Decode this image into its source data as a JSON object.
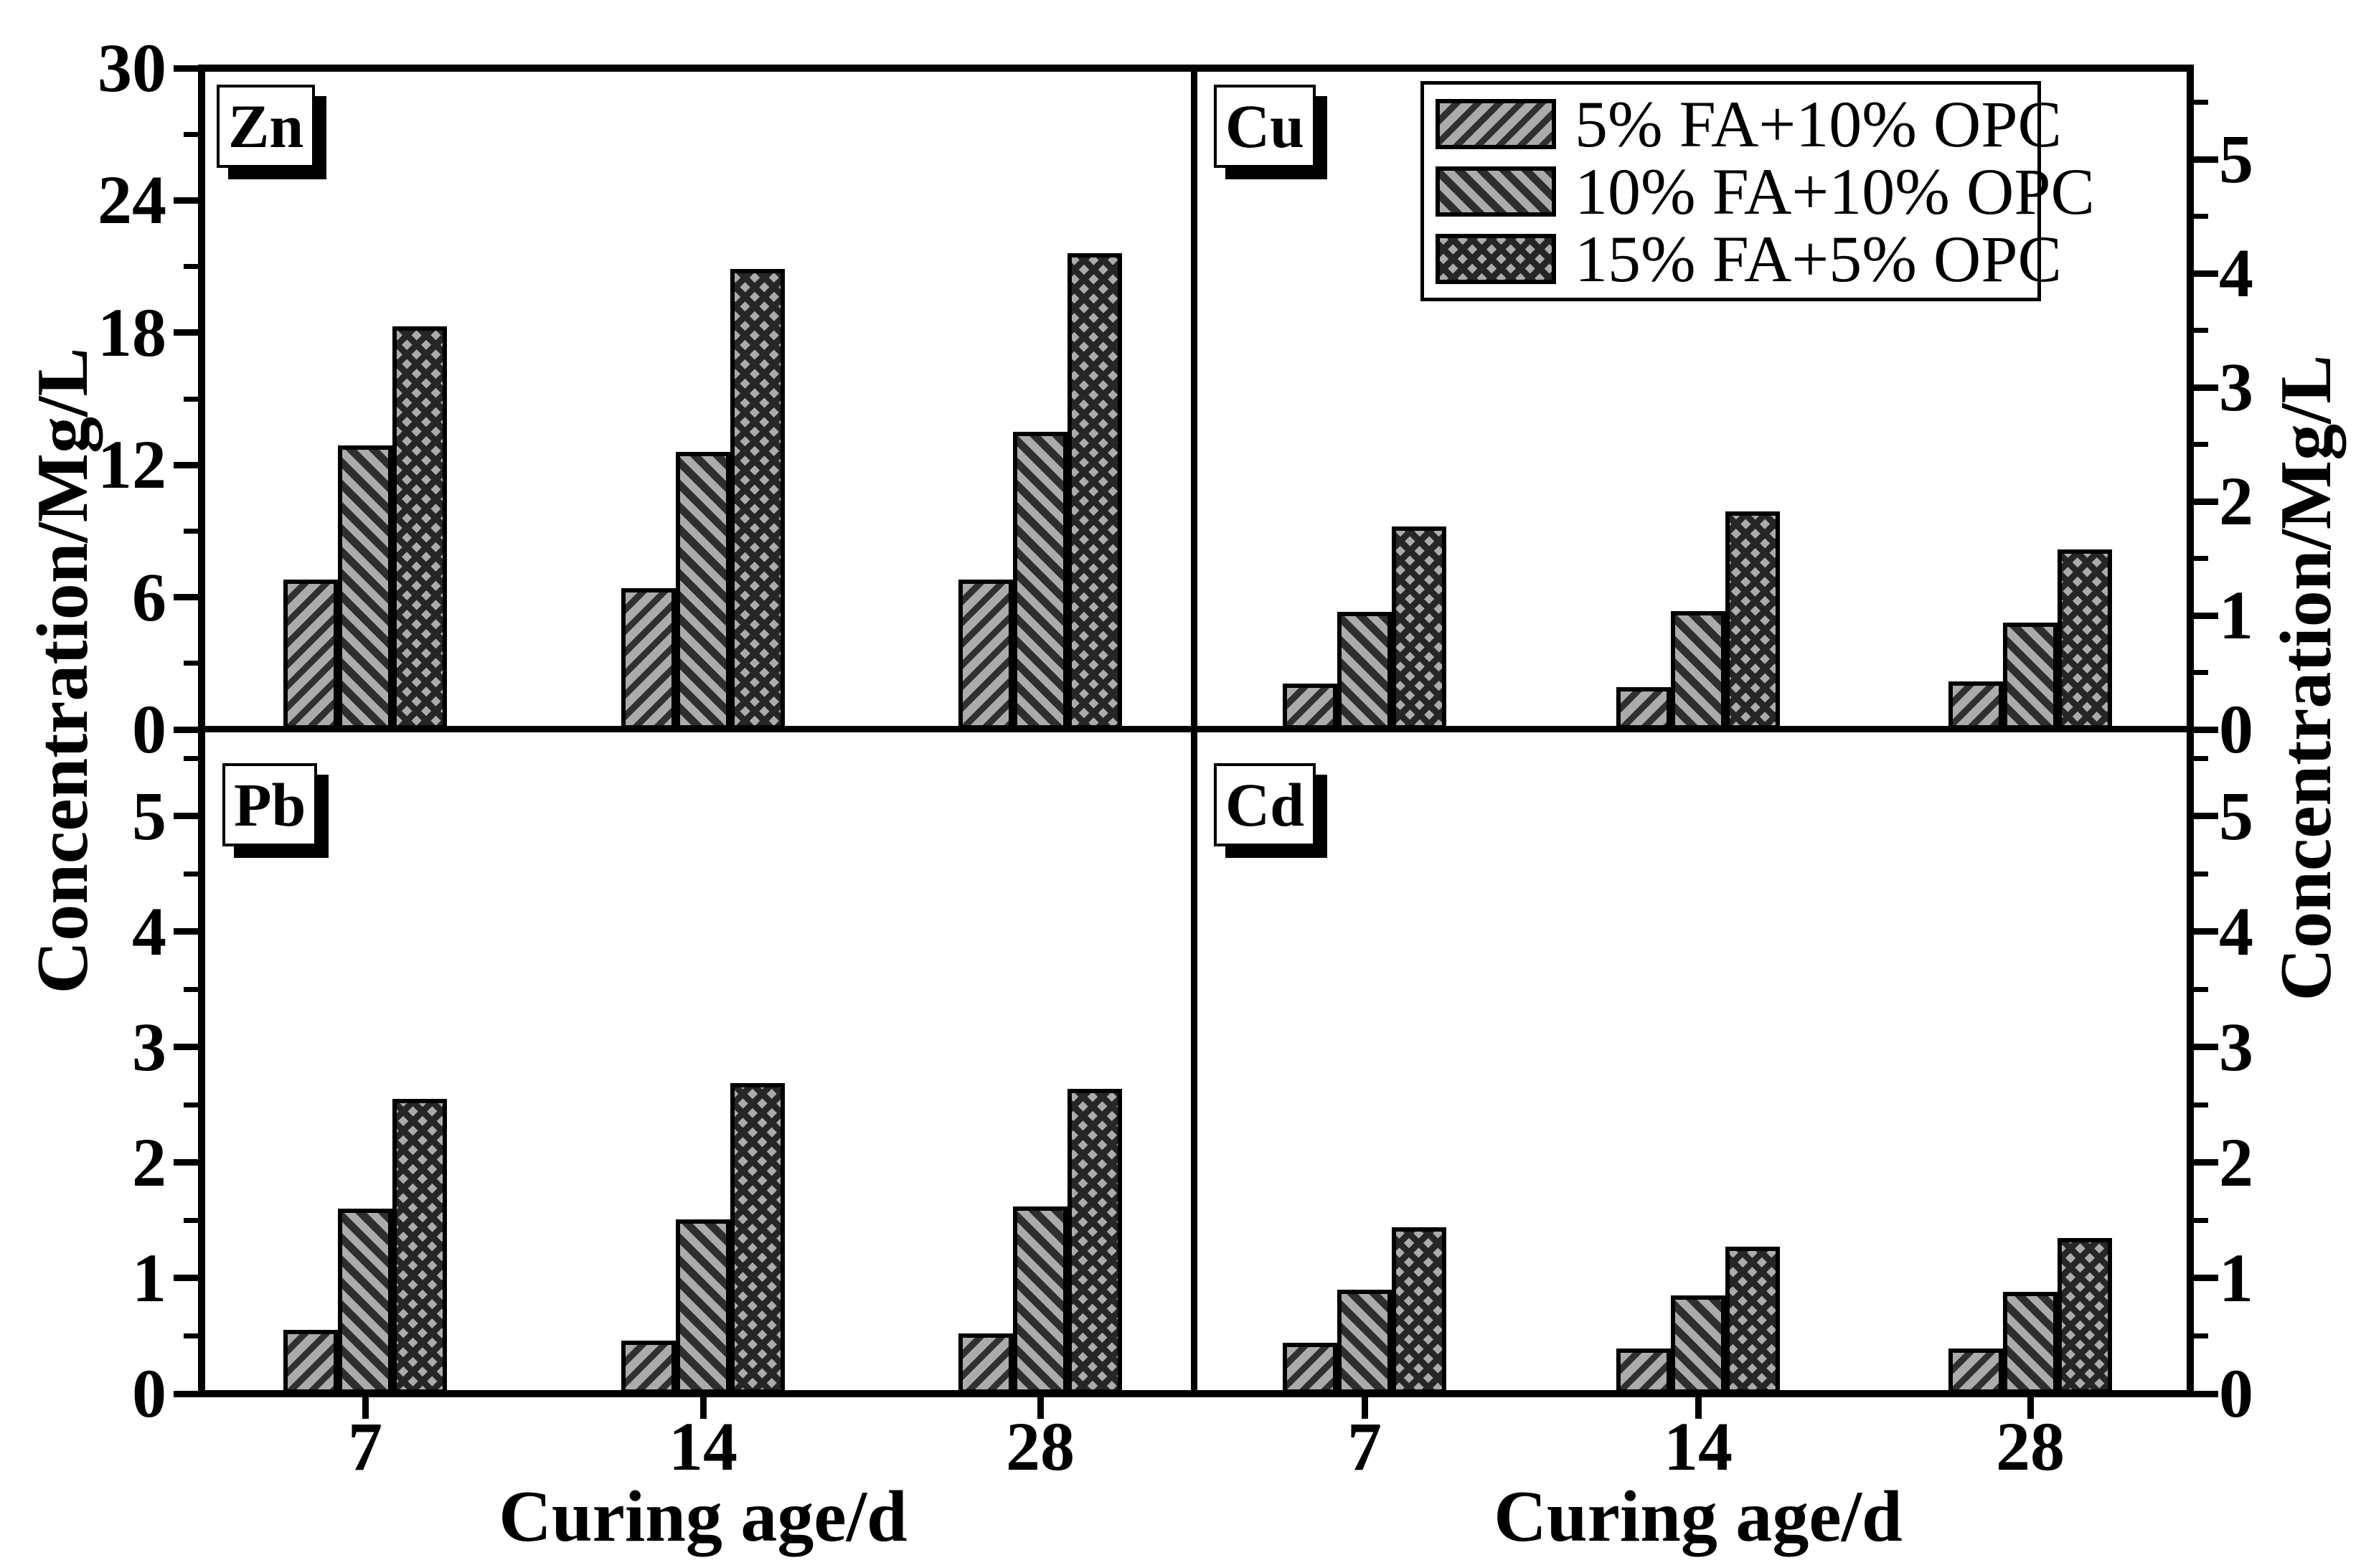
{
  "figure": {
    "left_axis_title": "Concentration/Mg/L",
    "right_axis_title": "Concentration/Mg/L",
    "x_axis_title": "Curing age/d",
    "colors": {
      "background": "#FFFFFF",
      "frame": "#000000",
      "bar_fill": "#ABABAB",
      "hatch_line": "#2E2E2E"
    },
    "legend": {
      "position": "top-right-panel",
      "entries": [
        {
          "label": "5% FA+10% OPC",
          "hatch": "diagonal-forward"
        },
        {
          "label": "10% FA+10% OPC",
          "hatch": "diagonal-backward"
        },
        {
          "label": "15% FA+5% OPC",
          "hatch": "crosshatch"
        }
      ]
    }
  },
  "chart_data": [
    {
      "type": "bar",
      "panel": "Zn",
      "axis_side": "left",
      "ylabel": "Concentration/Mg/L",
      "xlabel": "",
      "ylim": [
        0,
        30
      ],
      "ytick_step": 6,
      "yminor_step": 3,
      "categories": [
        "7",
        "14",
        "28"
      ],
      "series": [
        {
          "name": "5% FA+10% OPC",
          "values": [
            6.8,
            6.4,
            6.8
          ]
        },
        {
          "name": "10% FA+10% OPC",
          "values": [
            12.9,
            12.6,
            13.5
          ]
        },
        {
          "name": "15% FA+5% OPC",
          "values": [
            18.3,
            20.9,
            21.6
          ]
        }
      ]
    },
    {
      "type": "bar",
      "panel": "Cu",
      "axis_side": "right",
      "ylabel": "Concentration/Mg/L",
      "xlabel": "",
      "ylim": [
        0,
        5.8
      ],
      "ytick_step": 1,
      "yminor_step": 0.5,
      "categories": [
        "7",
        "14",
        "28"
      ],
      "series": [
        {
          "name": "5% FA+10% OPC",
          "values": [
            0.4,
            0.37,
            0.42
          ]
        },
        {
          "name": "10% FA+10% OPC",
          "values": [
            1.03,
            1.04,
            0.94
          ]
        },
        {
          "name": "15% FA+5% OPC",
          "values": [
            1.78,
            1.91,
            1.58
          ]
        }
      ]
    },
    {
      "type": "bar",
      "panel": "Pb",
      "axis_side": "left",
      "ylabel": "Concentration/Mg/L",
      "xlabel": "Curing age/d",
      "ylim": [
        0,
        5.75
      ],
      "ytick_step": 1,
      "yminor_step": 0.5,
      "categories": [
        "7",
        "14",
        "28"
      ],
      "series": [
        {
          "name": "5% FA+10% OPC",
          "values": [
            0.55,
            0.46,
            0.52
          ]
        },
        {
          "name": "10% FA+10% OPC",
          "values": [
            1.6,
            1.51,
            1.62
          ]
        },
        {
          "name": "15% FA+5% OPC",
          "values": [
            2.55,
            2.69,
            2.64
          ]
        }
      ]
    },
    {
      "type": "bar",
      "panel": "Cd",
      "axis_side": "right",
      "ylabel": "Concentration/Mg/L",
      "xlabel": "Curing age/d",
      "ylim": [
        0,
        5.75
      ],
      "ytick_step": 1,
      "yminor_step": 0.5,
      "categories": [
        "7",
        "14",
        "28"
      ],
      "series": [
        {
          "name": "5% FA+10% OPC",
          "values": [
            0.44,
            0.39,
            0.39
          ]
        },
        {
          "name": "10% FA+10% OPC",
          "values": [
            0.9,
            0.85,
            0.88
          ]
        },
        {
          "name": "15% FA+5% OPC",
          "values": [
            1.44,
            1.27,
            1.35
          ]
        }
      ]
    }
  ]
}
